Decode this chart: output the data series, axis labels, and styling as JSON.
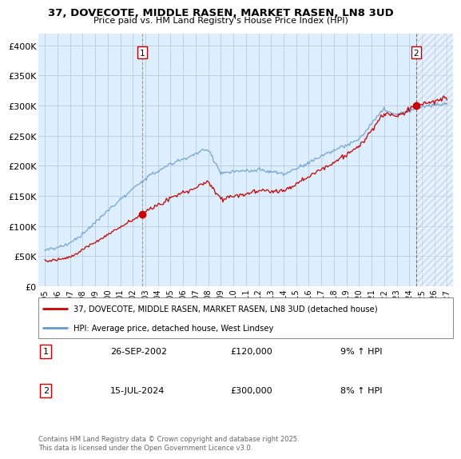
{
  "title": "37, DOVECOTE, MIDDLE RASEN, MARKET RASEN, LN8 3UD",
  "subtitle": "Price paid vs. HM Land Registry's House Price Index (HPI)",
  "legend_line1": "37, DOVECOTE, MIDDLE RASEN, MARKET RASEN, LN8 3UD (detached house)",
  "legend_line2": "HPI: Average price, detached house, West Lindsey",
  "annotation1_date": "26-SEP-2002",
  "annotation1_price": "£120,000",
  "annotation1_hpi": "9% ↑ HPI",
  "annotation2_date": "15-JUL-2024",
  "annotation2_price": "£300,000",
  "annotation2_hpi": "8% ↑ HPI",
  "footnote": "Contains HM Land Registry data © Crown copyright and database right 2025.\nThis data is licensed under the Open Government Licence v3.0.",
  "red_color": "#cc0000",
  "blue_color": "#6699cc",
  "vline1_color": "#aaaaaa",
  "vline2_color": "#dd4444",
  "plot_bg": "#ddeeff",
  "background_color": "#ffffff",
  "grid_color": "#bbccdd",
  "ylim": [
    0,
    420000
  ],
  "yticks": [
    0,
    50000,
    100000,
    150000,
    200000,
    250000,
    300000,
    350000,
    400000
  ],
  "ytick_labels": [
    "£0",
    "£50K",
    "£100K",
    "£150K",
    "£200K",
    "£250K",
    "£300K",
    "£350K",
    "£400K"
  ],
  "sale1_x": 2002.74,
  "sale1_y": 120000,
  "sale2_x": 2024.54,
  "sale2_y": 300000,
  "xlim": [
    1994.5,
    2027.5
  ]
}
